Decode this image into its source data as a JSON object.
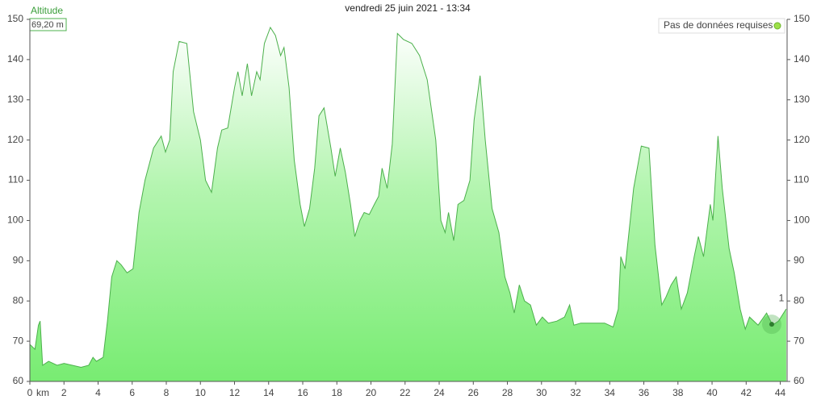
{
  "chart_data": {
    "type": "area",
    "title": "vendredi 25 juin 2021 - 13:34",
    "y_label": "Altitude",
    "current_value_label": "69,20 m",
    "status": "Pas de données requises",
    "x_unit": "km",
    "color": "#4cb04c",
    "x": [
      0,
      0.3,
      0.5,
      0.6,
      0.75,
      1.1,
      1.6,
      2.0,
      3.0,
      3.45,
      3.7,
      3.9,
      4.3,
      4.55,
      4.8,
      5.1,
      5.35,
      5.7,
      6.05,
      6.4,
      6.75,
      7.0,
      7.25,
      7.7,
      7.95,
      8.2,
      8.4,
      8.75,
      9.2,
      9.6,
      10.0,
      10.3,
      10.65,
      11.0,
      11.25,
      11.6,
      12.0,
      12.2,
      12.45,
      12.75,
      13.0,
      13.3,
      13.5,
      13.75,
      14.1,
      14.4,
      14.7,
      14.9,
      15.2,
      15.5,
      15.85,
      16.1,
      16.4,
      16.7,
      16.95,
      17.25,
      17.65,
      17.9,
      18.2,
      18.5,
      18.8,
      19.05,
      19.35,
      19.6,
      19.9,
      20.2,
      20.45,
      20.65,
      20.95,
      21.25,
      21.55,
      21.9,
      22.4,
      22.85,
      23.3,
      23.8,
      24.1,
      24.35,
      24.55,
      24.85,
      25.1,
      25.45,
      25.8,
      26.05,
      26.4,
      26.7,
      27.1,
      27.5,
      27.85,
      28.15,
      28.4,
      28.7,
      29.0,
      29.35,
      29.7,
      30.05,
      30.4,
      30.9,
      31.35,
      31.65,
      31.9,
      32.3,
      33.0,
      33.7,
      34.2,
      34.5,
      34.65,
      34.9,
      35.4,
      35.85,
      36.3,
      36.65,
      37.05,
      37.3,
      37.6,
      37.9,
      38.2,
      38.55,
      38.95,
      39.2,
      39.5,
      39.9,
      40.05,
      40.35,
      40.6,
      41.0,
      41.3,
      41.65,
      41.95,
      42.2,
      42.7,
      43.2,
      43.55,
      43.9,
      44.35
    ],
    "values": [
      69.2,
      68,
      74,
      75,
      64,
      65,
      64,
      64.5,
      63.5,
      64,
      66,
      65,
      66,
      75,
      86,
      90,
      89,
      87,
      88,
      102,
      110,
      114,
      118,
      121,
      117,
      120,
      137,
      144.5,
      144,
      127,
      120,
      110,
      107,
      118,
      122.5,
      123,
      133,
      137,
      131,
      139,
      131,
      137,
      135,
      144,
      148,
      146,
      141,
      143,
      133,
      115,
      104,
      98.5,
      103,
      113,
      126,
      128,
      118,
      111,
      118,
      112,
      104,
      96,
      100,
      102,
      101.5,
      104,
      106,
      113,
      108,
      119,
      146.5,
      145,
      144,
      141,
      135,
      120,
      100,
      97,
      102,
      95,
      104,
      105,
      110,
      125,
      136,
      120,
      103,
      97,
      86,
      82,
      77,
      84,
      80,
      79,
      74,
      76,
      74.5,
      75,
      76,
      79,
      74,
      74.5,
      74.5,
      74.5,
      73.5,
      78,
      91,
      88,
      108,
      118.5,
      118,
      94,
      79,
      81,
      84,
      86,
      78,
      82,
      91,
      96,
      91,
      104,
      100,
      121,
      108,
      93,
      87,
      78,
      73,
      76,
      74,
      77,
      74,
      75,
      78
    ],
    "marker": {
      "label": "1",
      "x": 43.5,
      "y": 74.2
    },
    "xlim": [
      0,
      44.4
    ],
    "ylim": [
      60,
      150
    ],
    "xticks": [
      0,
      2,
      4,
      6,
      8,
      10,
      12,
      14,
      16,
      18,
      20,
      22,
      24,
      26,
      28,
      30,
      32,
      34,
      36,
      38,
      40,
      42,
      44
    ],
    "yticks": [
      60,
      70,
      80,
      90,
      100,
      110,
      120,
      130,
      140,
      150
    ]
  }
}
